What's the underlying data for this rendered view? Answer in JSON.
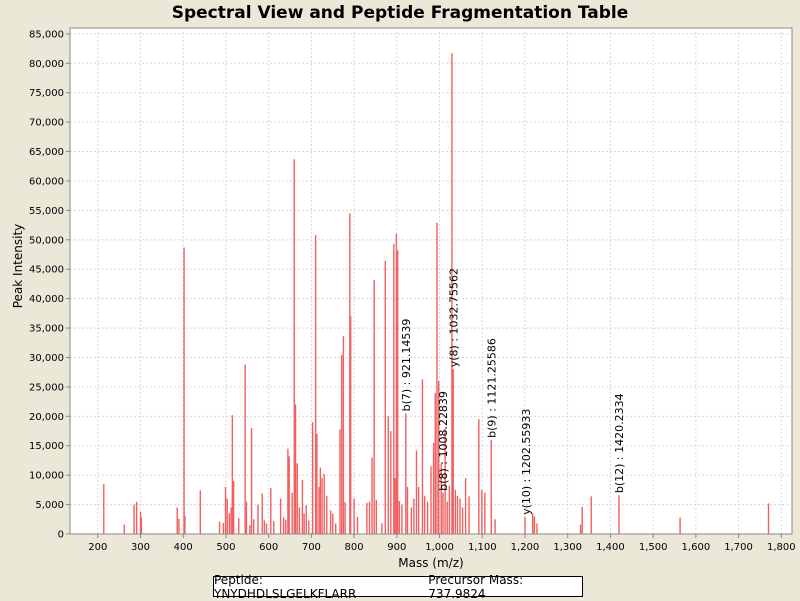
{
  "chart_data": {
    "type": "bar",
    "title": "Spectral View and Peptide Fragmentation Table",
    "xlabel": "Mass (m/z)",
    "ylabel": "Peak Intensity",
    "xlim": [
      135,
      1825
    ],
    "ylim": [
      0,
      86000
    ],
    "x_ticks": [
      200,
      300,
      400,
      500,
      600,
      700,
      800,
      900,
      1000,
      1100,
      1200,
      1300,
      1400,
      1500,
      1600,
      1700,
      1800
    ],
    "x_tick_labels": [
      "200",
      "300",
      "400",
      "500",
      "600",
      "700",
      "800",
      "900",
      "1,000",
      "1,100",
      "1,200",
      "1,300",
      "1,400",
      "1,500",
      "1,600",
      "1,700",
      "1,800"
    ],
    "y_ticks": [
      0,
      5000,
      10000,
      15000,
      20000,
      25000,
      30000,
      35000,
      40000,
      45000,
      50000,
      55000,
      60000,
      65000,
      70000,
      75000,
      80000,
      85000
    ],
    "y_tick_labels": [
      "0",
      "5,000",
      "10,000",
      "15,000",
      "20,000",
      "25,000",
      "30,000",
      "35,000",
      "40,000",
      "45,000",
      "50,000",
      "55,000",
      "60,000",
      "65,000",
      "70,000",
      "75,000",
      "80,000",
      "85,000"
    ],
    "peak_color": "#f06060",
    "grid": true,
    "peaks": [
      {
        "mz": 214,
        "intensity": 8500
      },
      {
        "mz": 262,
        "intensity": 1600
      },
      {
        "mz": 285,
        "intensity": 5000
      },
      {
        "mz": 291,
        "intensity": 5500
      },
      {
        "mz": 300,
        "intensity": 3800
      },
      {
        "mz": 302,
        "intensity": 2800
      },
      {
        "mz": 386,
        "intensity": 4500
      },
      {
        "mz": 390,
        "intensity": 2600
      },
      {
        "mz": 402,
        "intensity": 48700
      },
      {
        "mz": 404,
        "intensity": 3100
      },
      {
        "mz": 440,
        "intensity": 7400
      },
      {
        "mz": 485,
        "intensity": 2100
      },
      {
        "mz": 494,
        "intensity": 1900
      },
      {
        "mz": 499,
        "intensity": 8000
      },
      {
        "mz": 503,
        "intensity": 6000
      },
      {
        "mz": 508,
        "intensity": 3500
      },
      {
        "mz": 512,
        "intensity": 4500
      },
      {
        "mz": 515,
        "intensity": 20200
      },
      {
        "mz": 518,
        "intensity": 9000
      },
      {
        "mz": 530,
        "intensity": 2700
      },
      {
        "mz": 545,
        "intensity": 28800
      },
      {
        "mz": 548,
        "intensity": 5500
      },
      {
        "mz": 556,
        "intensity": 1500
      },
      {
        "mz": 560,
        "intensity": 18000
      },
      {
        "mz": 565,
        "intensity": 2500
      },
      {
        "mz": 575,
        "intensity": 5000
      },
      {
        "mz": 585,
        "intensity": 6900
      },
      {
        "mz": 590,
        "intensity": 2300
      },
      {
        "mz": 595,
        "intensity": 1800
      },
      {
        "mz": 605,
        "intensity": 7800
      },
      {
        "mz": 612,
        "intensity": 2200
      },
      {
        "mz": 628,
        "intensity": 6000
      },
      {
        "mz": 635,
        "intensity": 2800
      },
      {
        "mz": 640,
        "intensity": 2400
      },
      {
        "mz": 645,
        "intensity": 14500
      },
      {
        "mz": 648,
        "intensity": 13200
      },
      {
        "mz": 655,
        "intensity": 7000
      },
      {
        "mz": 660,
        "intensity": 63700
      },
      {
        "mz": 663,
        "intensity": 22000
      },
      {
        "mz": 667,
        "intensity": 12000
      },
      {
        "mz": 672,
        "intensity": 4500
      },
      {
        "mz": 679,
        "intensity": 9200
      },
      {
        "mz": 683,
        "intensity": 3500
      },
      {
        "mz": 688,
        "intensity": 4900
      },
      {
        "mz": 694,
        "intensity": 2300
      },
      {
        "mz": 703,
        "intensity": 19000
      },
      {
        "mz": 710,
        "intensity": 50800
      },
      {
        "mz": 713,
        "intensity": 17000
      },
      {
        "mz": 718,
        "intensity": 8000
      },
      {
        "mz": 721,
        "intensity": 11300
      },
      {
        "mz": 725,
        "intensity": 9500
      },
      {
        "mz": 730,
        "intensity": 10200
      },
      {
        "mz": 736,
        "intensity": 6500
      },
      {
        "mz": 745,
        "intensity": 4000
      },
      {
        "mz": 750,
        "intensity": 3500
      },
      {
        "mz": 757,
        "intensity": 1800
      },
      {
        "mz": 767,
        "intensity": 17800
      },
      {
        "mz": 771,
        "intensity": 30400
      },
      {
        "mz": 775,
        "intensity": 33600
      },
      {
        "mz": 779,
        "intensity": 5400
      },
      {
        "mz": 790,
        "intensity": 54500
      },
      {
        "mz": 792,
        "intensity": 37000
      },
      {
        "mz": 800,
        "intensity": 6000
      },
      {
        "mz": 808,
        "intensity": 2900
      },
      {
        "mz": 830,
        "intensity": 5300
      },
      {
        "mz": 836,
        "intensity": 5500
      },
      {
        "mz": 842,
        "intensity": 13000
      },
      {
        "mz": 847,
        "intensity": 43200
      },
      {
        "mz": 852,
        "intensity": 5800
      },
      {
        "mz": 865,
        "intensity": 1800
      },
      {
        "mz": 873,
        "intensity": 46400
      },
      {
        "mz": 880,
        "intensity": 20000
      },
      {
        "mz": 886,
        "intensity": 17500
      },
      {
        "mz": 893,
        "intensity": 49300
      },
      {
        "mz": 896,
        "intensity": 9500
      },
      {
        "mz": 899,
        "intensity": 51000
      },
      {
        "mz": 902,
        "intensity": 48200
      },
      {
        "mz": 906,
        "intensity": 5600
      },
      {
        "mz": 912,
        "intensity": 5000
      },
      {
        "mz": 921,
        "intensity": 20500
      },
      {
        "mz": 925,
        "intensity": 8000
      },
      {
        "mz": 934,
        "intensity": 4500
      },
      {
        "mz": 940,
        "intensity": 6000
      },
      {
        "mz": 946,
        "intensity": 14200
      },
      {
        "mz": 951,
        "intensity": 8000
      },
      {
        "mz": 960,
        "intensity": 26300
      },
      {
        "mz": 965,
        "intensity": 6500
      },
      {
        "mz": 972,
        "intensity": 5500
      },
      {
        "mz": 980,
        "intensity": 11500
      },
      {
        "mz": 986,
        "intensity": 15500
      },
      {
        "mz": 990,
        "intensity": 24000
      },
      {
        "mz": 994,
        "intensity": 52900
      },
      {
        "mz": 998,
        "intensity": 26000
      },
      {
        "mz": 1004,
        "intensity": 12000
      },
      {
        "mz": 1008,
        "intensity": 7000
      },
      {
        "mz": 1013,
        "intensity": 18000
      },
      {
        "mz": 1018,
        "intensity": 5500
      },
      {
        "mz": 1023,
        "intensity": 8200
      },
      {
        "mz": 1029,
        "intensity": 81700
      },
      {
        "mz": 1032,
        "intensity": 28000
      },
      {
        "mz": 1037,
        "intensity": 7500
      },
      {
        "mz": 1042,
        "intensity": 6500
      },
      {
        "mz": 1048,
        "intensity": 6000
      },
      {
        "mz": 1054,
        "intensity": 4500
      },
      {
        "mz": 1061,
        "intensity": 9500
      },
      {
        "mz": 1069,
        "intensity": 6400
      },
      {
        "mz": 1092,
        "intensity": 19500
      },
      {
        "mz": 1099,
        "intensity": 7500
      },
      {
        "mz": 1106,
        "intensity": 7000
      },
      {
        "mz": 1121,
        "intensity": 16000
      },
      {
        "mz": 1130,
        "intensity": 2500
      },
      {
        "mz": 1200,
        "intensity": 2900
      },
      {
        "mz": 1218,
        "intensity": 3500
      },
      {
        "mz": 1222,
        "intensity": 3000
      },
      {
        "mz": 1228,
        "intensity": 1800
      },
      {
        "mz": 1330,
        "intensity": 1600
      },
      {
        "mz": 1334,
        "intensity": 4600
      },
      {
        "mz": 1355,
        "intensity": 6400
      },
      {
        "mz": 1420,
        "intensity": 6600
      },
      {
        "mz": 1563,
        "intensity": 2800
      },
      {
        "mz": 1770,
        "intensity": 5200
      }
    ],
    "annotations": [
      {
        "label": "b(7) : 921.14539",
        "mz": 921.1
      },
      {
        "label": "b(8) : 1008.22839",
        "mz": 1008.2
      },
      {
        "label": "y(8) : 1032.75562",
        "mz": 1032.8
      },
      {
        "label": "b(9) : 1121.25586",
        "mz": 1121.3
      },
      {
        "label": "y(10) : 1202.55933",
        "mz": 1202.6
      },
      {
        "label": "b(12) : 1420.2334",
        "mz": 1420.2
      }
    ]
  },
  "footer": {
    "peptide": "Peptide: YNYDHDLSLGELKFLARR",
    "precursor_mass": "Precursor Mass: 737.9824"
  }
}
